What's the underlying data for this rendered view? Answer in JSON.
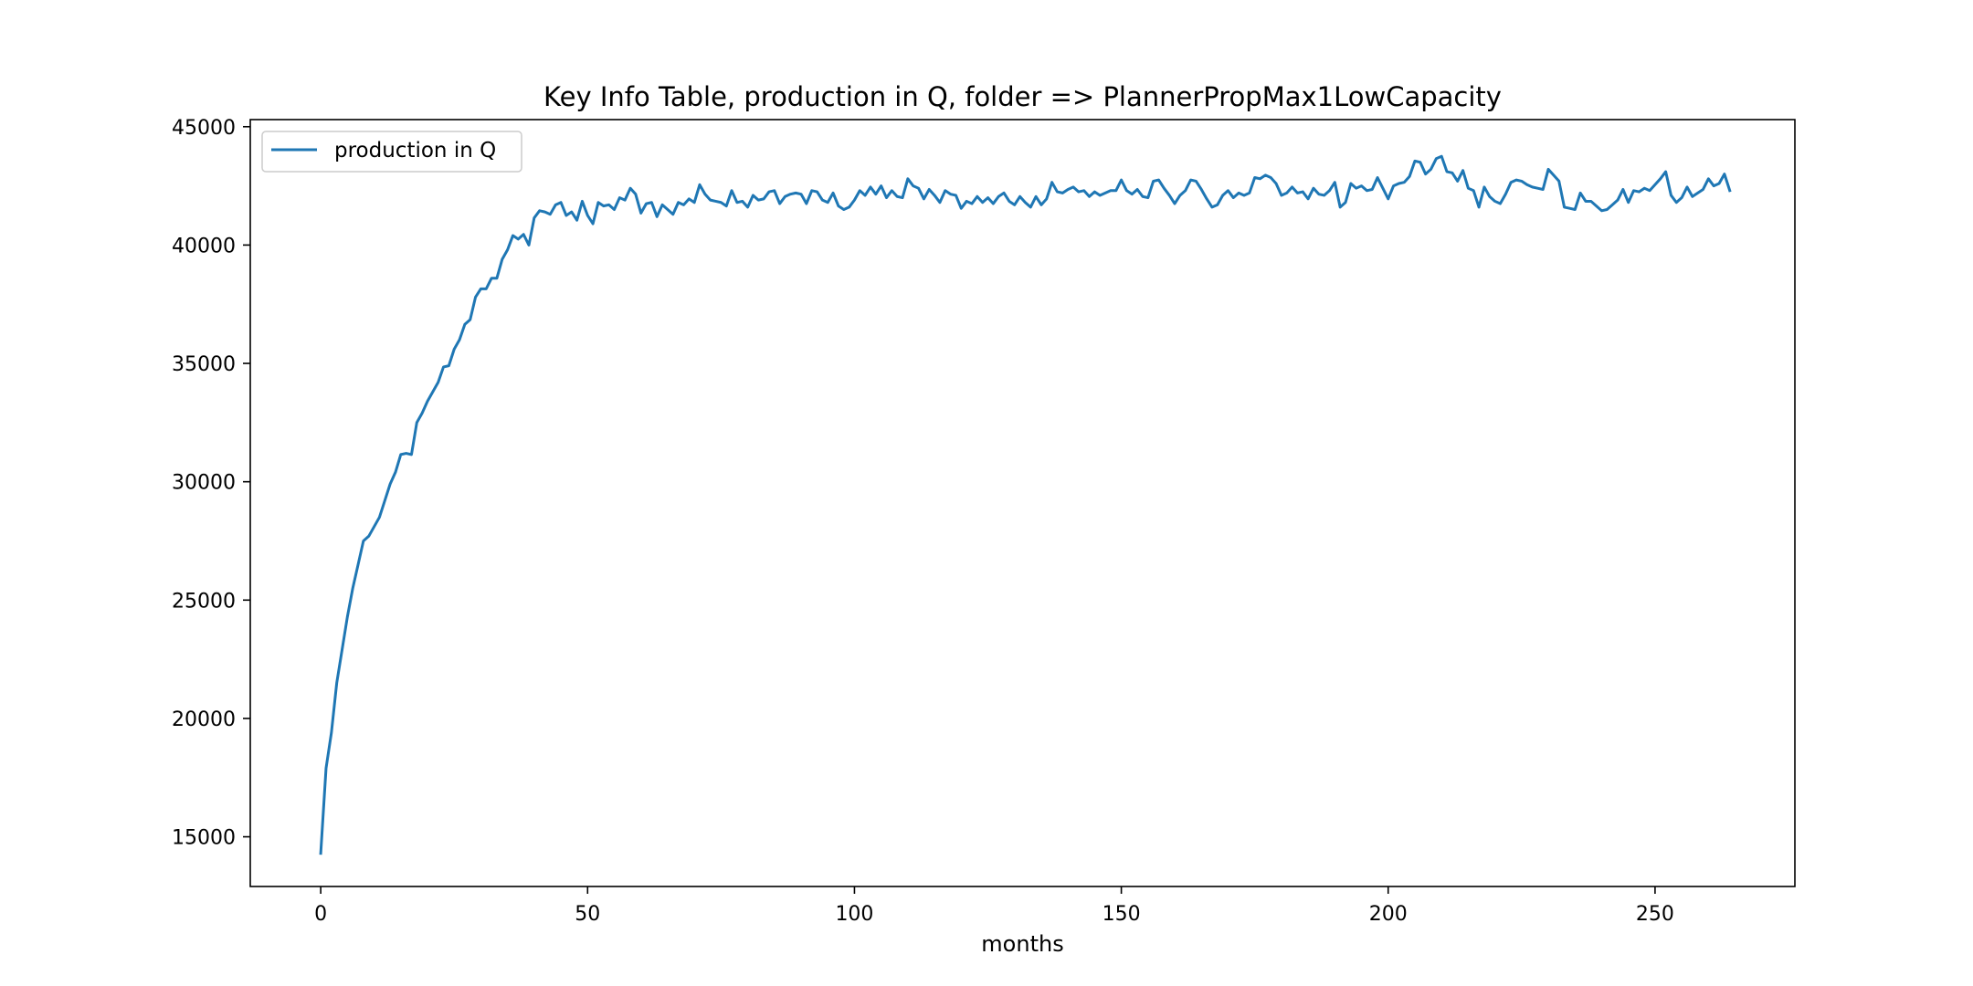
{
  "chart_data": {
    "type": "line",
    "title": "Key Info Table, production in Q, folder => PlannerPropMax1LowCapacity",
    "xlabel": "months",
    "ylabel": "",
    "xlim": [
      -13.2,
      276.2
    ],
    "ylim": [
      12900,
      45300
    ],
    "xticks": [
      0,
      50,
      100,
      150,
      200,
      250
    ],
    "yticks": [
      15000,
      20000,
      25000,
      30000,
      35000,
      40000,
      45000
    ],
    "grid": false,
    "legend": {
      "position": "top-left",
      "entries": [
        "production in Q"
      ]
    },
    "series": [
      {
        "name": "production in Q",
        "color": "#1f77b4",
        "x_start": 0,
        "x_step": 1,
        "values": [
          14300,
          17900,
          19400,
          21500,
          22900,
          24300,
          25500,
          26500,
          27500,
          27700,
          28100,
          28500,
          29200,
          29900,
          30400,
          31150,
          31200,
          31150,
          32500,
          32900,
          33400,
          33800,
          34200,
          34850,
          34900,
          35600,
          36000,
          36650,
          36850,
          37800,
          38150,
          38150,
          38600,
          38600,
          39400,
          39800,
          40400,
          40250,
          40450,
          40000,
          41150,
          41450,
          41400,
          41300,
          41700,
          41800,
          41250,
          41400,
          41050,
          41850,
          41250,
          40900,
          41800,
          41650,
          41700,
          41500,
          42000,
          41900,
          42400,
          42150,
          41350,
          41750,
          41800,
          41200,
          41700,
          41500,
          41300,
          41800,
          41700,
          41950,
          41800,
          42550,
          42150,
          41900,
          41850,
          41800,
          41650,
          42300,
          41800,
          41850,
          41600,
          42100,
          41900,
          41950,
          42250,
          42300,
          41750,
          42050,
          42150,
          42200,
          42150,
          41750,
          42300,
          42250,
          41900,
          41800,
          42200,
          41650,
          41500,
          41600,
          41900,
          42300,
          42100,
          42450,
          42150,
          42500,
          42000,
          42300,
          42050,
          42000,
          42800,
          42500,
          42400,
          41950,
          42350,
          42100,
          41800,
          42300,
          42150,
          42100,
          41550,
          41850,
          41750,
          42050,
          41800,
          42000,
          41750,
          42050,
          42200,
          41850,
          41700,
          42050,
          41800,
          41600,
          42050,
          41700,
          41950,
          42650,
          42250,
          42200,
          42350,
          42450,
          42250,
          42300,
          42050,
          42250,
          42100,
          42200,
          42300,
          42300,
          42750,
          42300,
          42150,
          42350,
          42050,
          42000,
          42700,
          42750,
          42400,
          42100,
          41750,
          42100,
          42300,
          42750,
          42700,
          42350,
          41950,
          41600,
          41700,
          42100,
          42300,
          42000,
          42200,
          42100,
          42200,
          42850,
          42800,
          42950,
          42850,
          42600,
          42100,
          42200,
          42450,
          42200,
          42250,
          41950,
          42400,
          42150,
          42100,
          42300,
          42650,
          41600,
          41800,
          42600,
          42400,
          42500,
          42300,
          42350,
          42850,
          42400,
          41950,
          42500,
          42600,
          42650,
          42900,
          43550,
          43500,
          43000,
          43200,
          43650,
          43750,
          43100,
          43050,
          42700,
          43150,
          42400,
          42300,
          41600,
          42450,
          42050,
          41850,
          41750,
          42150,
          42650,
          42750,
          42700,
          42550,
          42450,
          42400,
          42350,
          43200,
          42950,
          42700,
          41600,
          41550,
          41500,
          42200,
          41850,
          41850,
          41650,
          41450,
          41500,
          41700,
          41900,
          42350,
          41800,
          42300,
          42250,
          42400,
          42300,
          42550,
          42800,
          43100,
          42100,
          41800,
          42000,
          42450,
          42050,
          42200,
          42350,
          42800,
          42500,
          42600,
          43000,
          42300
        ]
      }
    ]
  }
}
